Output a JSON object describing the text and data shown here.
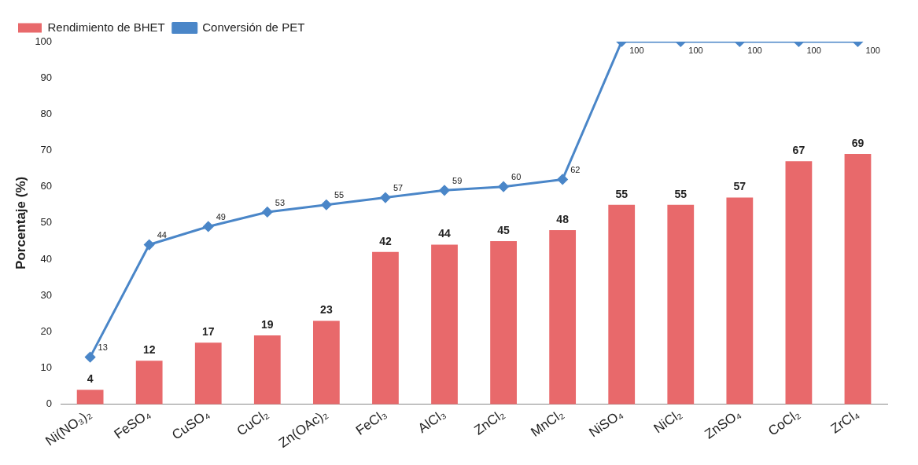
{
  "chart_data": {
    "type": "bar",
    "ylabel": "Porcentaje (%)",
    "categories": [
      "Ni(NO₃)₂",
      "FeSO₄",
      "CuSO₄",
      "CuCl₂",
      "Zn(OAc)₂",
      "FeCl₃",
      "AlCl₃",
      "ZnCl₂",
      "MnCl₂",
      "NiSO₄",
      "NiCl₂",
      "ZnSO₄",
      "CoCl₂",
      "ZrCl₄"
    ],
    "series": [
      {
        "name": "Rendimiento de BHET",
        "color": "#e8696b",
        "values": [
          4,
          12,
          17,
          19,
          23,
          42,
          44,
          45,
          48,
          55,
          55,
          57,
          67,
          69
        ]
      },
      {
        "name": "Conversión de PET",
        "type": "line",
        "color": "#4a86c8",
        "values": [
          13,
          44,
          49,
          53,
          55,
          57,
          59,
          60,
          62,
          100,
          100,
          100,
          100,
          100
        ]
      }
    ],
    "ylim": [
      0,
      100
    ],
    "yticks": [
      0,
      10,
      20,
      30,
      40,
      50,
      60,
      70,
      80,
      90,
      100
    ],
    "grid": false,
    "legend": "top left",
    "marker": "diamond",
    "line_style": "solid",
    "data_labels": true
  }
}
